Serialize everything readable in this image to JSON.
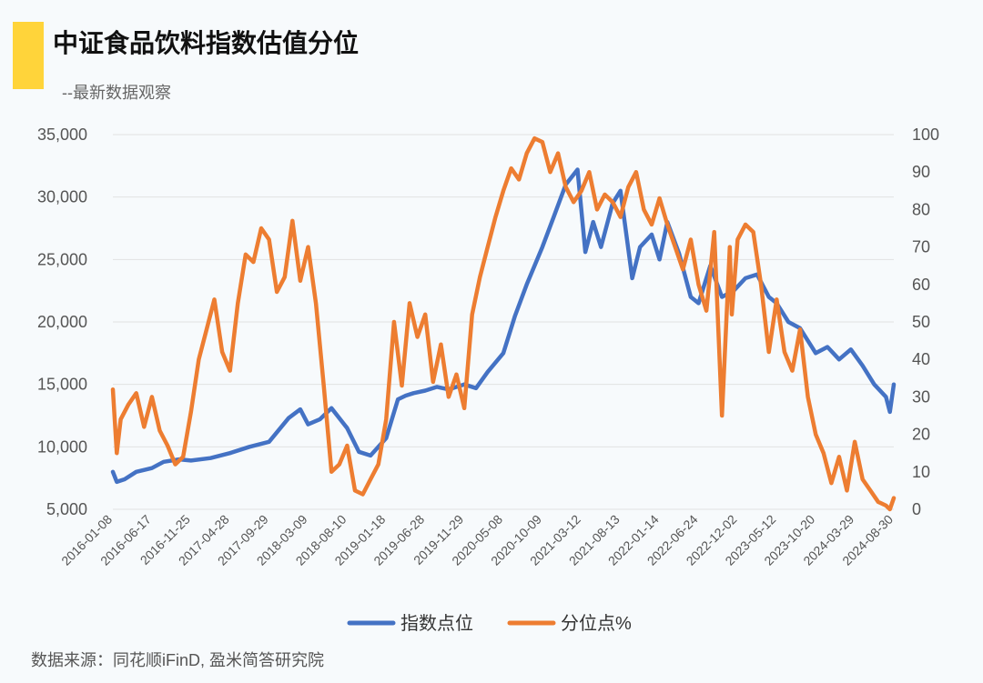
{
  "header": {
    "title": "中证食品饮料指数估值分位",
    "subtitle": "--最新数据观察"
  },
  "footer": {
    "source": "数据来源：同花顺iFinD, 盈米简答研究院"
  },
  "colors": {
    "index": "#4472c4",
    "percentile": "#ed7d31",
    "accent": "#ffd43a",
    "grid": "#e2e2e2"
  },
  "chart_data": {
    "type": "line",
    "title": "中证食品饮料指数估值分位",
    "x_tick_labels": [
      "2016-01-08",
      "2016-06-17",
      "2016-11-25",
      "2017-04-28",
      "2017-09-29",
      "2018-03-09",
      "2018-08-10",
      "2019-01-18",
      "2019-06-28",
      "2019-11-29",
      "2020-05-08",
      "2020-10-09",
      "2021-03-12",
      "2021-08-13",
      "2022-01-14",
      "2022-06-24",
      "2022-12-02",
      "2023-05-12",
      "2023-10-20",
      "2024-03-29",
      "2024-08-30"
    ],
    "y_left": {
      "min": 5000,
      "max": 35000,
      "ticks": [
        5000,
        10000,
        15000,
        20000,
        25000,
        30000,
        35000
      ],
      "tick_labels": [
        "5,000",
        "10,000",
        "15,000",
        "20,000",
        "25,000",
        "30,000",
        "35,000"
      ]
    },
    "y_right": {
      "min": 0,
      "max": 100,
      "ticks": [
        0,
        10,
        20,
        30,
        40,
        50,
        60,
        70,
        80,
        90,
        100
      ],
      "tick_labels": [
        "0",
        "10",
        "20",
        "30",
        "40",
        "50",
        "60",
        "70",
        "80",
        "90",
        "100"
      ]
    },
    "x_range": [
      0,
      20
    ],
    "series": [
      {
        "name": "指数点位",
        "axis": "left",
        "x": [
          0,
          0.1,
          0.3,
          0.6,
          1,
          1.3,
          1.7,
          2,
          2.5,
          3,
          3.5,
          4,
          4.5,
          4.8,
          5,
          5.3,
          5.6,
          6,
          6.3,
          6.6,
          7,
          7.3,
          7.5,
          7.7,
          8,
          8.3,
          8.6,
          9,
          9.3,
          9.6,
          10,
          10.3,
          10.6,
          11,
          11.3,
          11.6,
          11.9,
          12.1,
          12.3,
          12.5,
          12.8,
          13,
          13.3,
          13.5,
          13.8,
          14,
          14.2,
          14.5,
          14.8,
          15,
          15.3,
          15.6,
          15.9,
          16.2,
          16.5,
          16.8,
          17,
          17.3,
          17.6,
          18,
          18.3,
          18.6,
          18.9,
          19.2,
          19.5,
          19.8,
          19.9,
          20
        ],
        "values": [
          8000,
          7200,
          7400,
          8000,
          8300,
          8800,
          9000,
          8900,
          9100,
          9500,
          10000,
          10400,
          12300,
          13000,
          11800,
          12200,
          13100,
          11500,
          9600,
          9300,
          10700,
          13800,
          14100,
          14300,
          14500,
          14800,
          14600,
          15000,
          14700,
          16000,
          17500,
          20500,
          23000,
          26000,
          28500,
          31000,
          32200,
          25600,
          28000,
          26000,
          29500,
          30500,
          23500,
          26000,
          27000,
          25000,
          28000,
          25500,
          22000,
          21500,
          24500,
          22000,
          22500,
          23500,
          23800,
          22000,
          21500,
          20000,
          19500,
          17500,
          18000,
          17000,
          17800,
          16500,
          15000,
          14000,
          12800,
          15000
        ]
      },
      {
        "name": "分位点%",
        "axis": "right",
        "x": [
          0,
          0.1,
          0.2,
          0.4,
          0.6,
          0.8,
          1,
          1.2,
          1.4,
          1.6,
          1.8,
          2,
          2.2,
          2.4,
          2.6,
          2.8,
          3,
          3.2,
          3.4,
          3.6,
          3.8,
          4,
          4.2,
          4.4,
          4.6,
          4.8,
          5,
          5.2,
          5.4,
          5.6,
          5.8,
          6,
          6.2,
          6.4,
          6.6,
          6.8,
          7,
          7.2,
          7.4,
          7.6,
          7.8,
          8,
          8.2,
          8.4,
          8.6,
          8.8,
          9,
          9.2,
          9.4,
          9.6,
          9.8,
          10,
          10.2,
          10.4,
          10.6,
          10.8,
          11,
          11.2,
          11.4,
          11.6,
          11.8,
          12,
          12.2,
          12.4,
          12.6,
          12.8,
          13,
          13.2,
          13.4,
          13.6,
          13.8,
          14,
          14.2,
          14.4,
          14.6,
          14.8,
          15,
          15.2,
          15.4,
          15.6,
          15.8,
          15.85,
          16,
          16.2,
          16.4,
          16.6,
          16.8,
          17,
          17.2,
          17.4,
          17.6,
          17.8,
          18,
          18.2,
          18.4,
          18.6,
          18.8,
          19,
          19.2,
          19.4,
          19.6,
          19.8,
          19.9,
          20
        ],
        "values": [
          32,
          15,
          24,
          28,
          31,
          22,
          30,
          21,
          17,
          12,
          14,
          26,
          40,
          48,
          56,
          42,
          37,
          55,
          68,
          66,
          75,
          72,
          58,
          62,
          77,
          61,
          70,
          55,
          33,
          10,
          12,
          17,
          5,
          4,
          8,
          12,
          24,
          50,
          33,
          55,
          46,
          52,
          34,
          44,
          30,
          36,
          27,
          52,
          62,
          70,
          78,
          85,
          91,
          88,
          95,
          99,
          98,
          90,
          95,
          86,
          82,
          85,
          90,
          80,
          84,
          82,
          78,
          86,
          90,
          80,
          76,
          83,
          76,
          70,
          64,
          72,
          60,
          53,
          74,
          25,
          70,
          52,
          72,
          76,
          74,
          60,
          42,
          56,
          42,
          37,
          48,
          30,
          20,
          15,
          7,
          14,
          5,
          18,
          8,
          5,
          2,
          1,
          0,
          3
        ]
      }
    ]
  }
}
